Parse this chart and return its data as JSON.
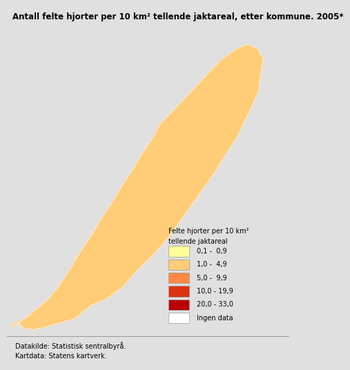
{
  "title": "Antall felte hjorter per 10 km² tellende jaktareal, etter kommune. 2005*",
  "legend_title_line1": "Felte hjorter per 10 km²",
  "legend_title_line2": "tellende jaktareal",
  "legend_entries": [
    {
      "label": "0,1 -  0,9",
      "color": "#FFFF99"
    },
    {
      "label": "1,0 -  4,9",
      "color": "#FFCC77"
    },
    {
      "label": "5,0 -  9,9",
      "color": "#FF8844"
    },
    {
      "label": "10,0 - 19,9",
      "color": "#DD3311"
    },
    {
      "label": "20,0 - 33,0",
      "color": "#BB0000"
    },
    {
      "label": "Ingen data",
      "color": "#FFFFFF"
    }
  ],
  "footer_line1": "Datakilde: Statistisk sentralbyrå.",
  "footer_line2": "Kartdata: Statens kartverk.",
  "bg_color": "#E0E0E0",
  "map_bg_color": "#C8DCE8",
  "title_fontsize": 8.5,
  "legend_fontsize": 7.0,
  "footer_fontsize": 7.0,
  "map_xlim": [
    4.5,
    31.5
  ],
  "map_ylim": [
    57.5,
    71.5
  ]
}
